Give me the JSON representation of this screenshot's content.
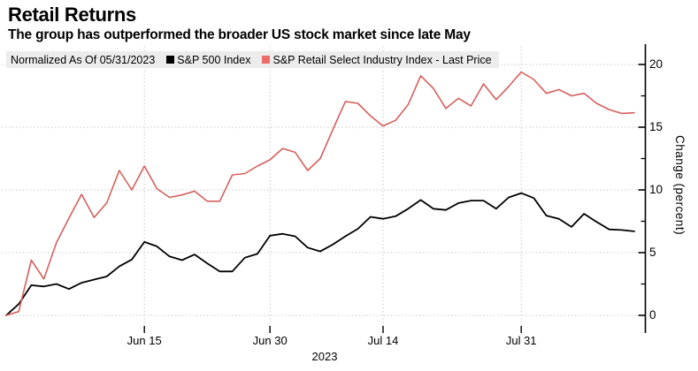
{
  "header": {
    "title": "Retail Returns",
    "subtitle": "The group has outperformed the broader US stock market since late May"
  },
  "legend": {
    "normalized_label": "Normalized As Of 05/31/2023",
    "series": [
      {
        "label": "S&P 500 Index",
        "swatch_color": "#000000"
      },
      {
        "label": "S&P Retail Select Industry Index - Last Price",
        "swatch_color": "#ed6b69"
      }
    ]
  },
  "chart_data": {
    "type": "line",
    "title": "Retail Returns",
    "subtitle": "The group has outperformed the broader US stock market since late May",
    "ylabel": "Change (percent)",
    "x_axis_year": "2023",
    "grid": "dotted",
    "legend_position": "top",
    "ylim": [
      -0.9,
      21.6
    ],
    "y_ticks": [
      0,
      5,
      10,
      15,
      20
    ],
    "y_minor_ticks": [
      2.5,
      7.5,
      12.5,
      17.5
    ],
    "x_ticks": [
      {
        "label": "Jun 15",
        "index": 11
      },
      {
        "label": "Jun 30",
        "index": 21
      },
      {
        "label": "Jul 14",
        "index": 30
      },
      {
        "label": "Jul 31",
        "index": 41
      }
    ],
    "x": [
      "May 31",
      "Jun 1",
      "Jun 2",
      "Jun 5",
      "Jun 6",
      "Jun 7",
      "Jun 8",
      "Jun 9",
      "Jun 12",
      "Jun 13",
      "Jun 14",
      "Jun 15",
      "Jun 16",
      "Jun 20",
      "Jun 21",
      "Jun 22",
      "Jun 23",
      "Jun 26",
      "Jun 27",
      "Jun 28",
      "Jun 29",
      "Jun 30",
      "Jul 3",
      "Jul 5",
      "Jul 6",
      "Jul 7",
      "Jul 10",
      "Jul 11",
      "Jul 12",
      "Jul 13",
      "Jul 14",
      "Jul 17",
      "Jul 18",
      "Jul 19",
      "Jul 20",
      "Jul 21",
      "Jul 24",
      "Jul 25",
      "Jul 26",
      "Jul 27",
      "Jul 28",
      "Jul 31",
      "Aug 1",
      "Aug 2",
      "Aug 3",
      "Aug 4",
      "Aug 7",
      "Aug 8",
      "Aug 9",
      "Aug 10",
      "Aug 11"
    ],
    "series": [
      {
        "name": "S&P 500 Index",
        "color": "#000000",
        "width": 1.8,
        "values": [
          0,
          0.9,
          2.4,
          2.3,
          2.5,
          2.1,
          2.6,
          2.85,
          3.1,
          3.9,
          4.45,
          5.85,
          5.5,
          4.7,
          4.4,
          4.85,
          4.15,
          3.5,
          3.5,
          4.6,
          4.9,
          6.35,
          6.5,
          6.3,
          5.4,
          5.1,
          5.65,
          6.3,
          6.9,
          7.85,
          7.7,
          7.9,
          8.5,
          9.2,
          8.5,
          8.4,
          8.95,
          9.15,
          9.15,
          8.5,
          9.4,
          9.75,
          9.35,
          7.95,
          7.7,
          7.05,
          8.1,
          7.45,
          6.85,
          6.8,
          6.7
        ]
      },
      {
        "name": "S&P Retail Select Industry Index - Last Price",
        "color": "#d4605c",
        "width": 1.6,
        "values": [
          0,
          0.3,
          4.4,
          2.9,
          5.8,
          7.75,
          9.65,
          7.8,
          8.95,
          11.55,
          10.0,
          11.9,
          10.1,
          9.4,
          9.6,
          9.9,
          9.1,
          9.1,
          11.2,
          11.3,
          11.9,
          12.4,
          13.3,
          13.0,
          11.55,
          12.5,
          14.8,
          17.05,
          16.9,
          15.9,
          15.1,
          15.55,
          16.8,
          19.1,
          18.1,
          16.5,
          17.3,
          16.7,
          18.45,
          17.2,
          18.25,
          19.4,
          18.8,
          17.7,
          18.0,
          17.5,
          17.7,
          16.9,
          16.4,
          16.1,
          16.15
        ]
      }
    ],
    "colors": {
      "grid": "#c8c8c8",
      "axis": "#000000",
      "legend_background": "#ececec"
    }
  }
}
